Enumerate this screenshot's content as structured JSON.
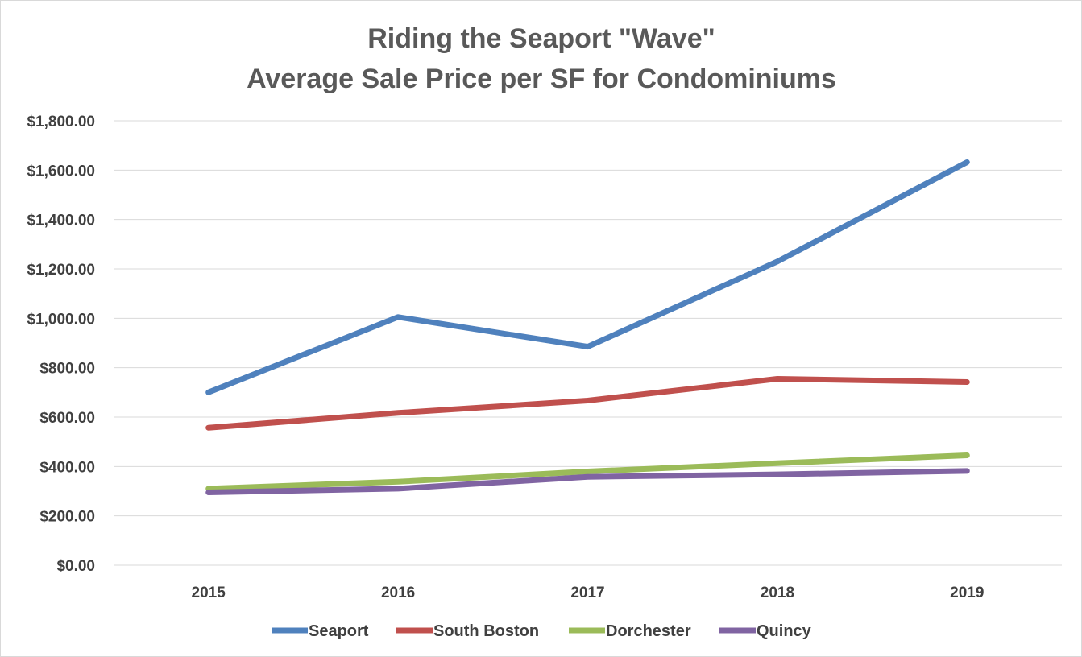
{
  "chart_data": {
    "type": "line",
    "title_lines": [
      "Riding the Seaport \"Wave\"",
      "Average Sale Price per SF for Condominiums"
    ],
    "xlabel": "",
    "ylabel": "",
    "categories": [
      "2015",
      "2016",
      "2017",
      "2018",
      "2019"
    ],
    "ylim": [
      0,
      1800
    ],
    "y_ticks": [
      0,
      200,
      400,
      600,
      800,
      1000,
      1200,
      1400,
      1600,
      1800
    ],
    "y_tick_labels": [
      "$0.00",
      "$200.00",
      "$400.00",
      "$600.00",
      "$800.00",
      "$1,000.00",
      "$1,200.00",
      "$1,400.00",
      "$1,600.00",
      "$1,800.00"
    ],
    "grid": true,
    "legend_position": "bottom",
    "series": [
      {
        "name": "Seaport",
        "color": "#4f81bd",
        "values": [
          700,
          1005,
          885,
          1230,
          1632
        ]
      },
      {
        "name": "South Boston",
        "color": "#c0504d",
        "values": [
          557,
          617,
          667,
          755,
          742
        ]
      },
      {
        "name": "Dorchester",
        "color": "#9bbb59",
        "values": [
          310,
          338,
          380,
          413,
          445
        ]
      },
      {
        "name": "Quincy",
        "color": "#8064a2",
        "values": [
          295,
          310,
          358,
          368,
          382
        ]
      }
    ]
  }
}
